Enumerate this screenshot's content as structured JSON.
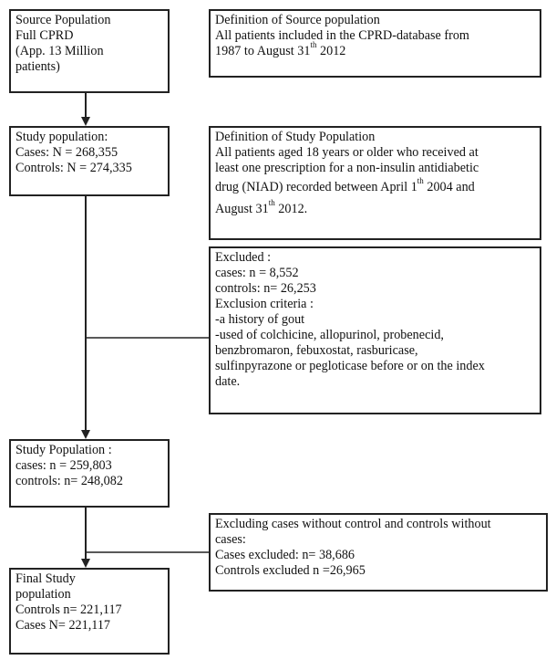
{
  "boxes": {
    "source": [
      "Source Population",
      "Full CPRD",
      "(App. 13 Million",
      "patients)"
    ],
    "study": [
      "Study population:",
      "Cases: N = 268,355",
      "Controls: N = 274,335"
    ],
    "study2": [
      "Study Population :",
      "cases: n = 259,803",
      "controls: n= 248,082"
    ],
    "final": [
      "Final Study",
      "population",
      "Controls n= 221,117",
      "Cases N= 221,117"
    ],
    "def_source": {
      "l1": "Definition of Source population",
      "l2": "All patients included in the CPRD-database from",
      "l3a": "1987 to August 31",
      "l3sup": "th",
      "l3b": " 2012"
    },
    "def_study": {
      "l1": "Definition of Study Population",
      "l2": "All patients aged 18 years or older who received at",
      "l3": "least one prescription for a non-insulin antidiabetic",
      "l4a": "drug (NIAD) recorded between April 1",
      "l4sup": "th",
      "l4b": " 2004 and",
      "l5a": "August 31",
      "l5sup": "th",
      "l5b": " 2012."
    },
    "excluded": [
      "Excluded :",
      "cases: n = 8,552",
      "controls: n= 26,253",
      "Exclusion criteria :",
      "-a history of gout",
      "-used of colchicine, allopurinol, probenecid,",
      "benzbromaron, febuxostat, rasburicase,",
      "sulfinpyrazone or pegloticase before or on the index",
      "date."
    ],
    "excluding": [
      "Excluding cases without control and controls without",
      "cases:",
      "Cases excluded: n= 38,686",
      "Controls excluded n =26,965"
    ]
  }
}
